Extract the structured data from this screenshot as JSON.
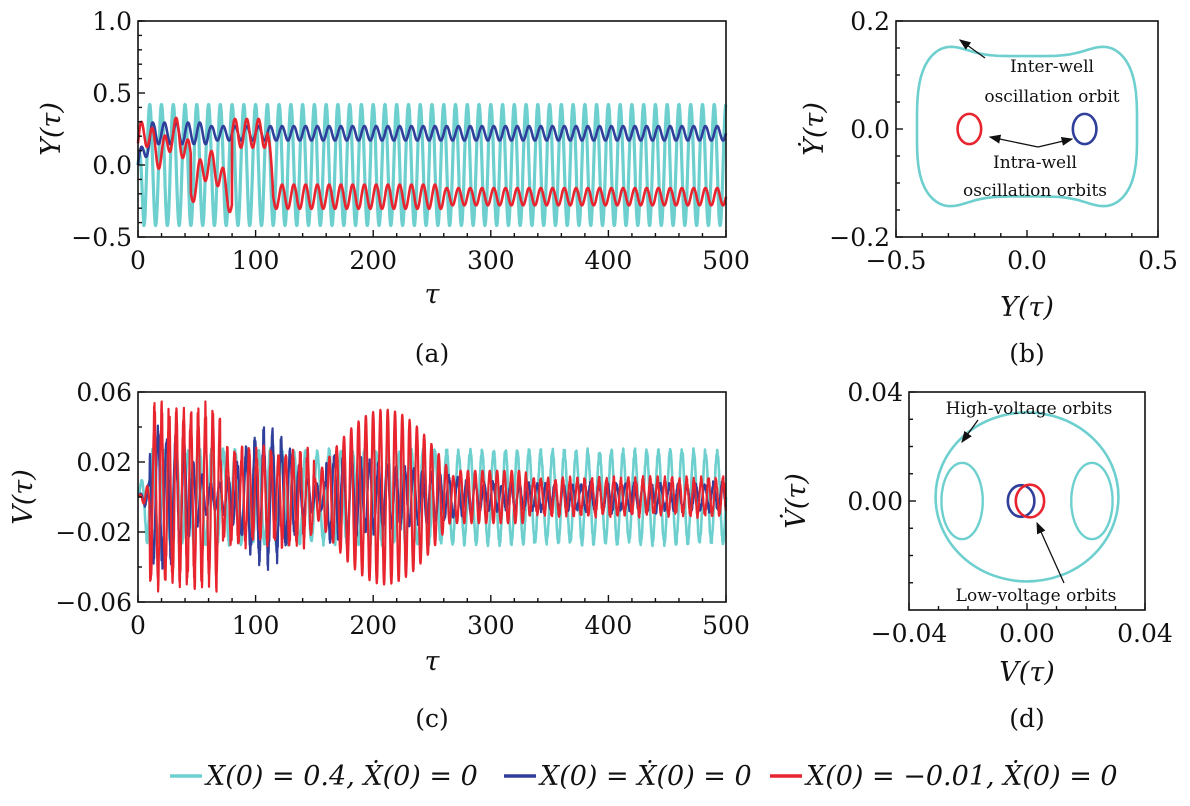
{
  "colors": {
    "cyan": "#6ecfcf",
    "blue": "#2f3f9a",
    "red": "#e8242e"
  },
  "legend": [
    {
      "key": "cyan",
      "label": "X(0) = 0.4, Ẋ(0) = 0"
    },
    {
      "key": "blue",
      "label": "X(0) = Ẋ(0) = 0"
    },
    {
      "key": "red",
      "label": "X(0) = −0.01, Ẋ(0) = 0"
    }
  ],
  "chart_data": [
    {
      "panel": "(a)",
      "type": "line",
      "xlabel": "τ",
      "ylabel": "Y(τ)",
      "xlim": [
        0,
        500
      ],
      "ylim": [
        -0.5,
        1.0
      ],
      "xticks": [
        "0",
        "100",
        "200",
        "300",
        "400",
        "500"
      ],
      "yticks": [
        "−0.5",
        "0.0",
        "0.5",
        "1.0"
      ],
      "series": [
        {
          "key": "cyan",
          "description": "inter-well oscillation",
          "mean": 0.0,
          "amplitude": 0.42,
          "period": 10
        },
        {
          "key": "blue",
          "description": "intra-well oscillation, right well",
          "settle_mean": 0.22,
          "amplitude": 0.05,
          "period": 10
        },
        {
          "key": "red",
          "description": "transient then intra-well oscillation, left well",
          "settle_mean": -0.22,
          "amplitude": 0.06,
          "period": 10,
          "settle_tau": 115
        }
      ]
    },
    {
      "panel": "(b)",
      "type": "line",
      "xlabel": "Y(τ)",
      "ylabel": "Ẏ(τ)",
      "xlim": [
        -0.5,
        0.5
      ],
      "ylim": [
        -0.2,
        0.2
      ],
      "xticks": [
        "−0.5",
        "0.0",
        "0.5"
      ],
      "yticks": [
        "−0.2",
        "0.0",
        "0.2"
      ],
      "series": [
        {
          "key": "cyan",
          "orbit": "inter-well",
          "x_range": [
            -0.42,
            0.42
          ],
          "y_range": [
            -0.16,
            0.17
          ]
        },
        {
          "key": "red",
          "orbit": "intra-well",
          "center": [
            -0.22,
            0.0
          ],
          "radius": [
            0.045,
            0.028
          ]
        },
        {
          "key": "blue",
          "orbit": "intra-well",
          "center": [
            0.22,
            0.0
          ],
          "radius": [
            0.045,
            0.028
          ]
        }
      ],
      "annotations": [
        {
          "lines": [
            "Inter-well",
            "oscillation orbit"
          ]
        },
        {
          "lines": [
            "Intra-well",
            "oscillation orbits"
          ]
        }
      ]
    },
    {
      "panel": "(c)",
      "type": "line",
      "xlabel": "τ",
      "ylabel": "V(τ)",
      "xlim": [
        0,
        500
      ],
      "ylim": [
        -0.06,
        0.06
      ],
      "xticks": [
        "0",
        "100",
        "200",
        "300",
        "400",
        "500"
      ],
      "yticks": [
        "−0.06",
        "−0.02",
        "0.02",
        "0.06"
      ],
      "series": [
        {
          "key": "cyan",
          "description": "high-voltage steady oscillation",
          "amplitude": 0.028
        },
        {
          "key": "blue",
          "description": "transient burst then low-voltage oscillation",
          "peak_amplitude": 0.042
        },
        {
          "key": "red",
          "description": "transient burst then low-voltage oscillation",
          "peak_amplitude": 0.055
        }
      ]
    },
    {
      "panel": "(d)",
      "type": "line",
      "xlabel": "V(τ)",
      "ylabel": "V̇(τ)",
      "xlim": [
        -0.04,
        0.04
      ],
      "ylim": [
        -0.04,
        0.04
      ],
      "xticks": [
        "−0.04",
        "0.00",
        "0.04"
      ],
      "yticks": [
        "0.00",
        "0.04"
      ],
      "series": [
        {
          "key": "cyan",
          "orbit": "high-voltage",
          "radius": 0.031
        },
        {
          "key": "blue",
          "orbit": "low-voltage",
          "center": [
            -0.002,
            0.0
          ],
          "radius": [
            0.0045,
            0.0058
          ]
        },
        {
          "key": "red",
          "orbit": "low-voltage",
          "center": [
            0.001,
            0.0
          ],
          "radius": [
            0.0048,
            0.006
          ]
        }
      ],
      "annotations": [
        {
          "lines": [
            "High-voltage orbits"
          ]
        },
        {
          "lines": [
            "Low-voltage orbits"
          ]
        }
      ]
    }
  ]
}
